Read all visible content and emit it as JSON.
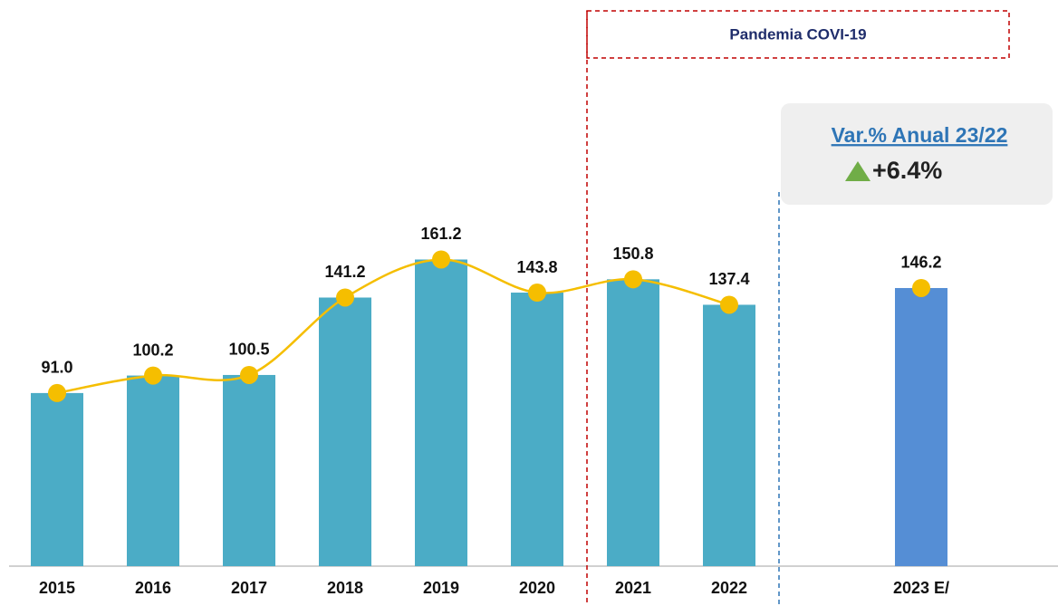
{
  "chart_data": {
    "type": "bar",
    "categories": [
      "2015",
      "2016",
      "2017",
      "2018",
      "2019",
      "2020",
      "2021",
      "2022",
      null,
      "2023 E/"
    ],
    "values": [
      91.0,
      100.2,
      100.5,
      141.2,
      161.2,
      143.8,
      150.8,
      137.4,
      null,
      146.2
    ],
    "value_labels": [
      "91.0",
      "100.2",
      "100.5",
      "141.2",
      "161.2",
      "143.8",
      "150.8",
      "137.4",
      null,
      "146.2"
    ],
    "colors": [
      "#4bacc6",
      "#4bacc6",
      "#4bacc6",
      "#4bacc6",
      "#4bacc6",
      "#4bacc6",
      "#4bacc6",
      "#4bacc6",
      null,
      "#558ed5"
    ],
    "line_color": "#f5be00",
    "ylim": [
      0,
      180
    ],
    "annotations": {
      "pandemic": "Pandemia COVI-19",
      "variation_title": "Var.% Anual 23/22",
      "variation_value": "+6.4%"
    }
  }
}
